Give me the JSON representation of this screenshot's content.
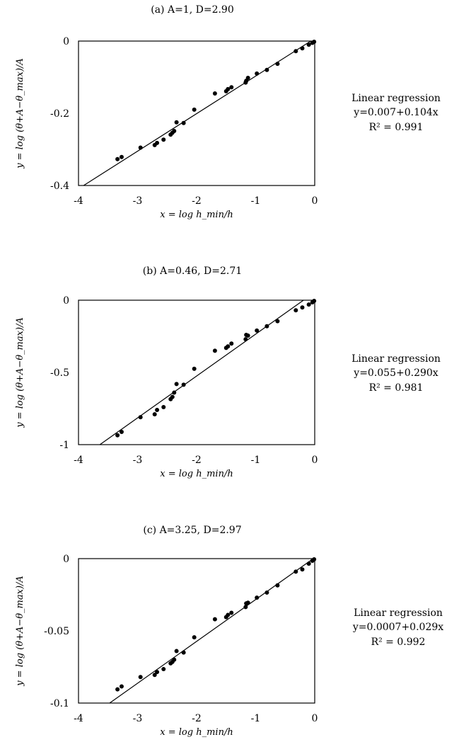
{
  "chart_data": [
    {
      "type": "scatter",
      "title": "(a) A=1, D=2.90",
      "xlabel": "x = log h_min/h",
      "ylabel": "y = log (θ+A−θ_max)/A",
      "xlim": [
        -4,
        0
      ],
      "ylim": [
        -0.4,
        0
      ],
      "xticks": [
        "-4",
        "-3",
        "-2",
        "-1",
        "0"
      ],
      "yticks": [
        "0",
        "-0.2",
        "-0.4"
      ],
      "y_tick_values": [
        0,
        -0.2,
        -0.4
      ],
      "grid": false,
      "series": [
        {
          "x": [
            -3.34,
            -3.27,
            -2.95,
            -2.71,
            -2.67,
            -2.56,
            -2.44,
            -2.41,
            -2.38,
            -2.34,
            -2.22,
            -2.04,
            -1.69,
            -1.5,
            -1.47,
            -1.41,
            -1.17,
            -1.16,
            -1.13,
            -0.98,
            -0.81,
            -0.63,
            -0.32,
            -0.21,
            -0.1,
            -0.04,
            -0.01
          ],
          "y": [
            -0.327,
            -0.321,
            -0.295,
            -0.288,
            -0.282,
            -0.273,
            -0.259,
            -0.254,
            -0.249,
            -0.225,
            -0.227,
            -0.19,
            -0.145,
            -0.139,
            -0.133,
            -0.128,
            -0.115,
            -0.11,
            -0.102,
            -0.09,
            -0.08,
            -0.063,
            -0.028,
            -0.02,
            -0.01,
            -0.005,
            -0.002
          ]
        }
      ],
      "regression": {
        "intercept": 0.007,
        "slope": 0.104
      },
      "annotation": {
        "line1": "Linear regression",
        "line2": "y=0.007+0.104x",
        "line3": "R² = 0.991"
      }
    },
    {
      "type": "scatter",
      "title": "(b) A=0.46, D=2.71",
      "xlabel": "x = log h_min/h",
      "ylabel": "y = log (θ+A−θ_max)/A",
      "xlim": [
        -4,
        0
      ],
      "ylim": [
        -1,
        0
      ],
      "xticks": [
        "-4",
        "-3",
        "-2",
        "-1",
        "0"
      ],
      "yticks": [
        "0",
        "-0.5",
        "-1"
      ],
      "y_tick_values": [
        0,
        -0.5,
        -1
      ],
      "grid": false,
      "series": [
        {
          "x": [
            -3.34,
            -3.27,
            -2.95,
            -2.71,
            -2.67,
            -2.56,
            -2.44,
            -2.41,
            -2.38,
            -2.34,
            -2.22,
            -2.04,
            -1.69,
            -1.5,
            -1.47,
            -1.41,
            -1.17,
            -1.16,
            -1.13,
            -0.98,
            -0.81,
            -0.63,
            -0.32,
            -0.21,
            -0.1,
            -0.04,
            -0.01
          ],
          "y": [
            -0.935,
            -0.912,
            -0.81,
            -0.79,
            -0.76,
            -0.74,
            -0.685,
            -0.67,
            -0.64,
            -0.58,
            -0.585,
            -0.475,
            -0.35,
            -0.33,
            -0.32,
            -0.3,
            -0.27,
            -0.24,
            -0.245,
            -0.21,
            -0.18,
            -0.145,
            -0.07,
            -0.05,
            -0.03,
            -0.015,
            -0.005
          ]
        }
      ],
      "regression": {
        "intercept": 0.055,
        "slope": 0.29
      },
      "annotation": {
        "line1": "Linear regression",
        "line2": "y=0.055+0.290x",
        "line3": "R² = 0.981"
      }
    },
    {
      "type": "scatter",
      "title": "(c) A=3.25, D=2.97",
      "xlabel": "x = log h_min/h",
      "ylabel": "y = log (θ+A−θ_max)/A",
      "xlim": [
        -4,
        0
      ],
      "ylim": [
        -0.1,
        0
      ],
      "xticks": [
        "-4",
        "-3",
        "-2",
        "-1",
        "0"
      ],
      "yticks": [
        "0",
        "-0.05",
        "-0.1"
      ],
      "y_tick_values": [
        0,
        -0.05,
        -0.1
      ],
      "grid": false,
      "series": [
        {
          "x": [
            -3.34,
            -3.27,
            -2.95,
            -2.71,
            -2.67,
            -2.56,
            -2.44,
            -2.41,
            -2.38,
            -2.34,
            -2.22,
            -2.04,
            -1.69,
            -1.5,
            -1.47,
            -1.41,
            -1.17,
            -1.16,
            -1.13,
            -0.98,
            -0.81,
            -0.63,
            -0.32,
            -0.21,
            -0.1,
            -0.04,
            -0.01
          ],
          "y": [
            -0.0905,
            -0.0885,
            -0.082,
            -0.0805,
            -0.0785,
            -0.0765,
            -0.0725,
            -0.0715,
            -0.07,
            -0.064,
            -0.065,
            -0.0545,
            -0.042,
            -0.0405,
            -0.039,
            -0.0375,
            -0.0335,
            -0.031,
            -0.0305,
            -0.027,
            -0.0235,
            -0.0185,
            -0.009,
            -0.0075,
            -0.0035,
            -0.0015,
            -0.0005
          ]
        }
      ],
      "regression": {
        "intercept": 0.0007,
        "slope": 0.029
      },
      "annotation": {
        "line1": "Linear regression",
        "line2": "y=0.0007+0.029x",
        "line3": "R² = 0.992"
      }
    }
  ]
}
